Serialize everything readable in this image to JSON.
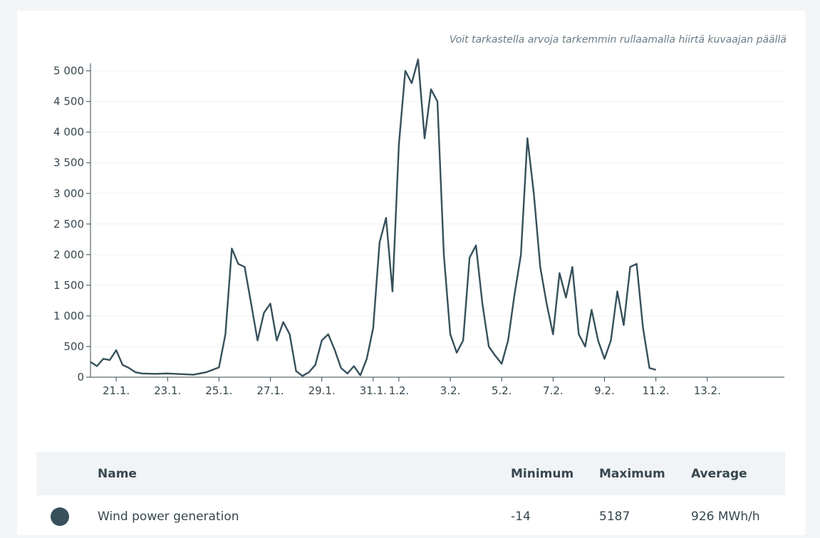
{
  "hint_text": "Voit tarkastella arvoja tarkemmin rullaamalla hiirtä kuvaajan päällä",
  "chart_data": {
    "type": "line",
    "title": "",
    "xlabel": "",
    "ylabel": "",
    "ylim": [
      0,
      5100
    ],
    "yticks": [
      0,
      500,
      1000,
      1500,
      2000,
      2500,
      3000,
      3500,
      4000,
      4500,
      5000
    ],
    "ytick_labels": [
      "0",
      "500",
      "1 000",
      "1 500",
      "2 000",
      "2 500",
      "3 000",
      "3 500",
      "4 000",
      "4 500",
      "5 000"
    ],
    "xlim": [
      "2024-01-20",
      "2024-02-16"
    ],
    "xticks": [
      "2024-01-21",
      "2024-01-23",
      "2024-01-25",
      "2024-01-27",
      "2024-01-29",
      "2024-01-31",
      "2024-02-01",
      "2024-02-03",
      "2024-02-05",
      "2024-02-07",
      "2024-02-09",
      "2024-02-11",
      "2024-02-13"
    ],
    "xtick_labels": [
      "21.1.",
      "23.1.",
      "25.1.",
      "27.1.",
      "29.1.",
      "31.1.",
      "1.2.",
      "3.2.",
      "5.2.",
      "7.2.",
      "9.2.",
      "11.2.",
      "13.2."
    ],
    "grid": true,
    "legend": "none",
    "series": [
      {
        "color": "#37505c",
        "x": [
          "2024-01-20 00:00",
          "2024-01-20 06:00",
          "2024-01-20 12:00",
          "2024-01-20 18:00",
          "2024-01-21 00:00",
          "2024-01-21 06:00",
          "2024-01-21 12:00",
          "2024-01-21 18:00",
          "2024-01-22 00:00",
          "2024-01-22 12:00",
          "2024-01-23 00:00",
          "2024-01-23 12:00",
          "2024-01-24 00:00",
          "2024-01-24 12:00",
          "2024-01-25 00:00",
          "2024-01-25 06:00",
          "2024-01-25 12:00",
          "2024-01-25 18:00",
          "2024-01-26 00:00",
          "2024-01-26 06:00",
          "2024-01-26 12:00",
          "2024-01-26 18:00",
          "2024-01-27 00:00",
          "2024-01-27 06:00",
          "2024-01-27 12:00",
          "2024-01-27 18:00",
          "2024-01-28 00:00",
          "2024-01-28 06:00",
          "2024-01-28 12:00",
          "2024-01-28 18:00",
          "2024-01-29 00:00",
          "2024-01-29 06:00",
          "2024-01-29 12:00",
          "2024-01-29 18:00",
          "2024-01-30 00:00",
          "2024-01-30 06:00",
          "2024-01-30 12:00",
          "2024-01-30 18:00",
          "2024-01-31 00:00",
          "2024-01-31 06:00",
          "2024-01-31 12:00",
          "2024-01-31 18:00",
          "2024-02-01 00:00",
          "2024-02-01 06:00",
          "2024-02-01 12:00",
          "2024-02-01 18:00",
          "2024-02-02 00:00",
          "2024-02-02 06:00",
          "2024-02-02 12:00",
          "2024-02-02 18:00",
          "2024-02-03 00:00",
          "2024-02-03 06:00",
          "2024-02-03 12:00",
          "2024-02-03 18:00",
          "2024-02-04 00:00",
          "2024-02-04 06:00",
          "2024-02-04 12:00",
          "2024-02-04 18:00",
          "2024-02-05 00:00",
          "2024-02-05 06:00",
          "2024-02-05 12:00",
          "2024-02-05 18:00",
          "2024-02-06 00:00",
          "2024-02-06 06:00",
          "2024-02-06 12:00",
          "2024-02-06 18:00",
          "2024-02-07 00:00",
          "2024-02-07 06:00",
          "2024-02-07 12:00",
          "2024-02-07 18:00",
          "2024-02-08 00:00",
          "2024-02-08 06:00",
          "2024-02-08 12:00",
          "2024-02-08 18:00",
          "2024-02-09 00:00",
          "2024-02-09 06:00",
          "2024-02-09 12:00",
          "2024-02-09 18:00",
          "2024-02-10 00:00",
          "2024-02-10 06:00",
          "2024-02-10 12:00",
          "2024-02-10 18:00",
          "2024-02-11 00:00"
        ],
        "y": [
          250,
          180,
          300,
          280,
          440,
          200,
          150,
          80,
          60,
          55,
          60,
          50,
          40,
          80,
          160,
          700,
          2100,
          1850,
          1800,
          1200,
          600,
          1050,
          1200,
          600,
          900,
          700,
          100,
          20,
          80,
          200,
          600,
          700,
          450,
          150,
          60,
          180,
          30,
          300,
          800,
          2200,
          2600,
          1400,
          3800,
          5000,
          4800,
          5187,
          3900,
          4700,
          4500,
          2000,
          700,
          400,
          600,
          1950,
          2150,
          1200,
          500,
          350,
          220,
          600,
          1350,
          2000,
          3900,
          3000,
          1800,
          1200,
          700,
          1700,
          1300,
          1800,
          700,
          500,
          1100,
          600,
          300,
          600,
          1400,
          850,
          1800,
          1850,
          800,
          150,
          120
        ]
      }
    ]
  },
  "summary": {
    "headers": {
      "name": "Name",
      "min": "Minimum",
      "max": "Maximum",
      "avg": "Average"
    },
    "row": {
      "name": "Wind power generation",
      "min": "-14",
      "max": "5187",
      "avg": "926 MWh/h"
    }
  }
}
